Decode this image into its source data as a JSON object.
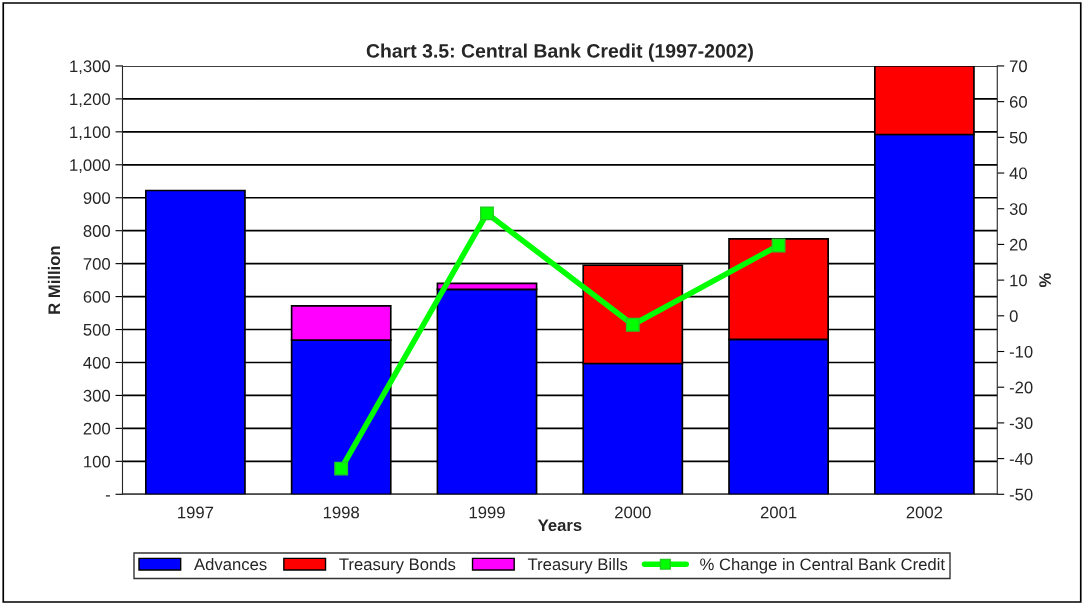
{
  "chart_data": {
    "type": "bar",
    "title": "Chart 3.5: Central Bank Credit (1997-2002)",
    "xlabel": "Years",
    "ylabel": "R Million",
    "y2label": "%",
    "categories": [
      "1997",
      "1998",
      "1999",
      "2000",
      "2001",
      "2002"
    ],
    "stacked": true,
    "series": [
      {
        "name": "Advances",
        "color": "#0000ff",
        "values": [
          922,
          468,
          622,
          397,
          470,
          1092
        ]
      },
      {
        "name": "Treasury Bonds",
        "color": "#ff0000",
        "values": [
          null,
          null,
          null,
          298,
          305,
          208
        ]
      },
      {
        "name": "Treasury Bills",
        "color": "#ff00ff",
        "values": [
          null,
          104,
          18,
          null,
          null,
          null
        ]
      },
      {
        "name": "% Change in Central Bank Credit",
        "type": "line",
        "axis": "y2",
        "color": "#00ff00",
        "marker": "square",
        "values": [
          null,
          -42.8,
          28.7,
          -2.5,
          19.7,
          null
        ]
      }
    ],
    "ylim": [
      0,
      1300
    ],
    "yticks": [
      {
        "value": 0,
        "label": "-"
      },
      100,
      200,
      300,
      400,
      500,
      600,
      700,
      800,
      900,
      {
        "value": 1000,
        "label": "1,000"
      },
      {
        "value": 1100,
        "label": "1,100"
      },
      {
        "value": 1200,
        "label": "1,200"
      },
      {
        "value": 1300,
        "label": "1,300"
      }
    ],
    "y2lim": [
      -50,
      70
    ],
    "y2ticks": [
      -50,
      -40,
      -30,
      -20,
      -10,
      0,
      10,
      20,
      30,
      40,
      50,
      60,
      70
    ],
    "grid": "y",
    "legend": "bottom"
  }
}
